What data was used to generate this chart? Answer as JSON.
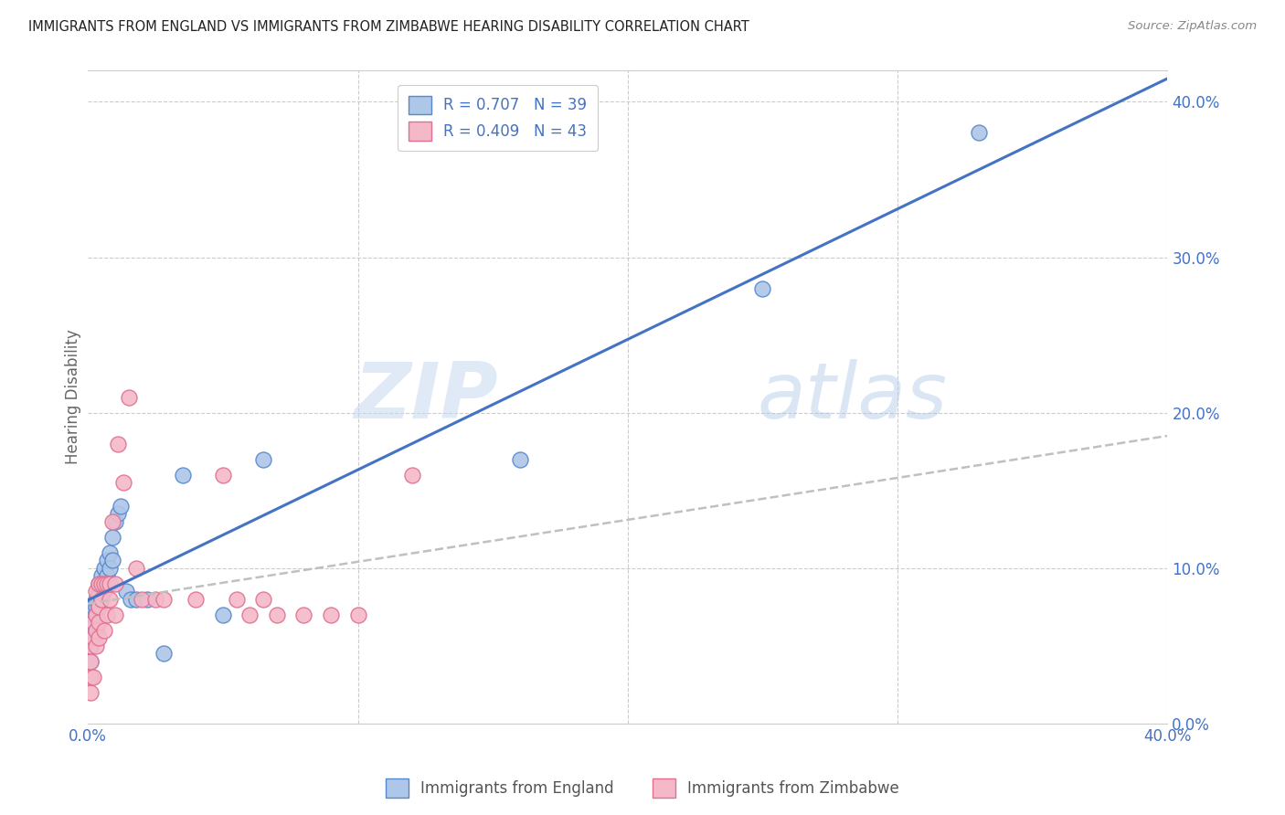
{
  "title": "IMMIGRANTS FROM ENGLAND VS IMMIGRANTS FROM ZIMBABWE HEARING DISABILITY CORRELATION CHART",
  "source": "Source: ZipAtlas.com",
  "ylabel": "Hearing Disability",
  "legend_england": "R = 0.707   N = 39",
  "legend_zimbabwe": "R = 0.409   N = 43",
  "legend_label_england": "Immigrants from England",
  "legend_label_zimbabwe": "Immigrants from Zimbabwe",
  "color_england_fill": "#aec6e8",
  "color_zimbabwe_fill": "#f4b8c8",
  "color_england_edge": "#5588cc",
  "color_zimbabwe_edge": "#e07090",
  "color_england_line": "#4472c4",
  "color_zimbabwe_line": "#c0c0c0",
  "color_text_blue": "#4472c4",
  "color_axis_label": "#4472c4",
  "watermark_zip": "ZIP",
  "watermark_atlas": "atlas",
  "england_x": [
    0.001,
    0.001,
    0.001,
    0.002,
    0.002,
    0.002,
    0.002,
    0.003,
    0.003,
    0.003,
    0.003,
    0.004,
    0.004,
    0.004,
    0.005,
    0.005,
    0.005,
    0.006,
    0.006,
    0.007,
    0.007,
    0.008,
    0.008,
    0.009,
    0.009,
    0.01,
    0.011,
    0.012,
    0.014,
    0.016,
    0.018,
    0.022,
    0.028,
    0.035,
    0.05,
    0.065,
    0.16,
    0.25,
    0.33
  ],
  "england_y": [
    0.04,
    0.05,
    0.06,
    0.055,
    0.065,
    0.07,
    0.075,
    0.06,
    0.07,
    0.075,
    0.08,
    0.075,
    0.085,
    0.09,
    0.08,
    0.09,
    0.095,
    0.085,
    0.1,
    0.095,
    0.105,
    0.1,
    0.11,
    0.105,
    0.12,
    0.13,
    0.135,
    0.14,
    0.085,
    0.08,
    0.08,
    0.08,
    0.045,
    0.16,
    0.07,
    0.17,
    0.17,
    0.28,
    0.38
  ],
  "zimbabwe_x": [
    0.001,
    0.001,
    0.001,
    0.001,
    0.002,
    0.002,
    0.002,
    0.003,
    0.003,
    0.003,
    0.003,
    0.004,
    0.004,
    0.004,
    0.004,
    0.005,
    0.005,
    0.006,
    0.006,
    0.007,
    0.007,
    0.008,
    0.008,
    0.009,
    0.01,
    0.01,
    0.011,
    0.013,
    0.015,
    0.018,
    0.02,
    0.025,
    0.028,
    0.04,
    0.05,
    0.055,
    0.06,
    0.065,
    0.07,
    0.08,
    0.09,
    0.1,
    0.12
  ],
  "zimbabwe_y": [
    0.02,
    0.03,
    0.04,
    0.05,
    0.03,
    0.055,
    0.065,
    0.05,
    0.06,
    0.07,
    0.085,
    0.055,
    0.065,
    0.075,
    0.09,
    0.08,
    0.09,
    0.06,
    0.09,
    0.07,
    0.09,
    0.08,
    0.09,
    0.13,
    0.09,
    0.07,
    0.18,
    0.155,
    0.21,
    0.1,
    0.08,
    0.08,
    0.08,
    0.08,
    0.16,
    0.08,
    0.07,
    0.08,
    0.07,
    0.07,
    0.07,
    0.07,
    0.16
  ],
  "xlim": [
    0.0,
    0.4
  ],
  "ylim": [
    0.0,
    0.42
  ],
  "england_line_intercept": 0.04,
  "england_line_slope": 0.66,
  "zimbabwe_line_intercept": 0.055,
  "zimbabwe_line_slope": 0.5
}
